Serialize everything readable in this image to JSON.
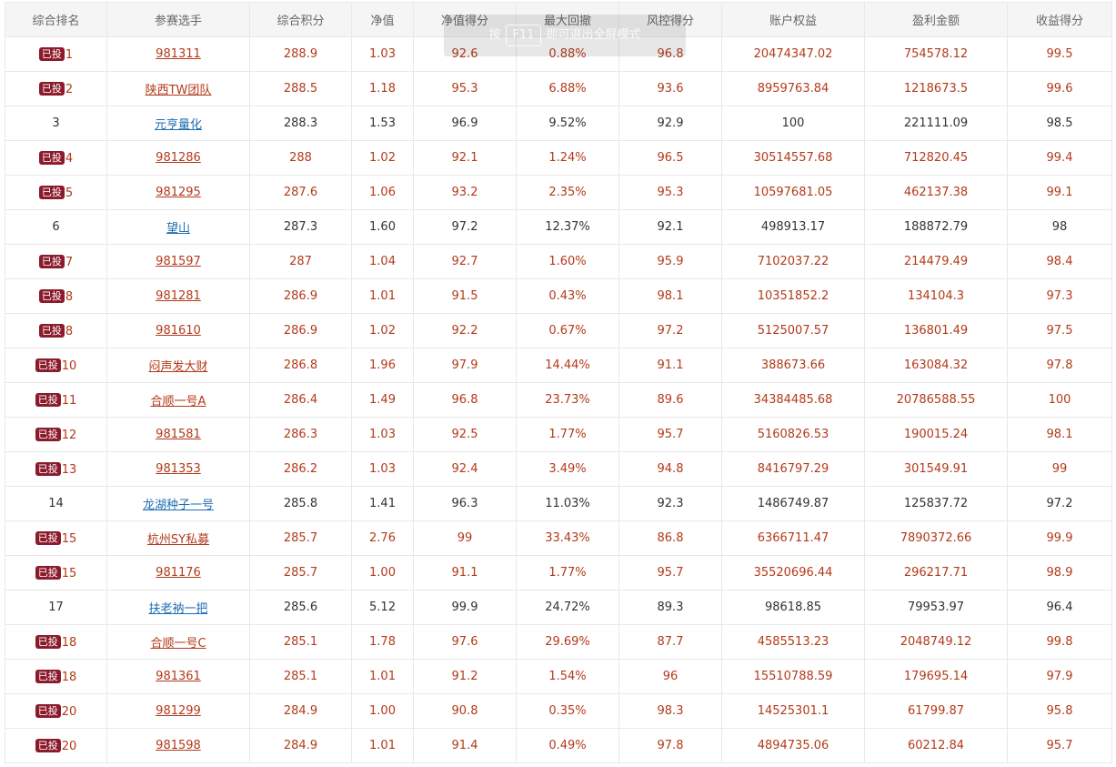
{
  "headers": [
    "综合排名",
    "参赛选手",
    "综合积分",
    "净值",
    "净值得分",
    "最大回撤",
    "风控得分",
    "账户权益",
    "盈利金额",
    "收益得分"
  ],
  "badge_label": "已投",
  "toast": {
    "pre": "按",
    "key": "F11",
    "post": "即可退出全屏模式"
  },
  "rows": [
    {
      "rank": "1",
      "invested": true,
      "name": "981311",
      "score": "288.9",
      "nav": "1.03",
      "nav_score": "92.6",
      "max_dd": "0.88%",
      "risk_score": "96.8",
      "equity": "20474347.02",
      "profit": "754578.12",
      "return_score": "99.5"
    },
    {
      "rank": "2",
      "invested": true,
      "name": "陕西TW团队",
      "score": "288.5",
      "nav": "1.18",
      "nav_score": "95.3",
      "max_dd": "6.88%",
      "risk_score": "93.6",
      "equity": "8959763.84",
      "profit": "1218673.5",
      "return_score": "99.6"
    },
    {
      "rank": "3",
      "invested": false,
      "name": "元亨量化",
      "score": "288.3",
      "nav": "1.53",
      "nav_score": "96.9",
      "max_dd": "9.52%",
      "risk_score": "92.9",
      "equity": "100",
      "profit": "221111.09",
      "return_score": "98.5"
    },
    {
      "rank": "4",
      "invested": true,
      "name": "981286",
      "score": "288",
      "nav": "1.02",
      "nav_score": "92.1",
      "max_dd": "1.24%",
      "risk_score": "96.5",
      "equity": "30514557.68",
      "profit": "712820.45",
      "return_score": "99.4"
    },
    {
      "rank": "5",
      "invested": true,
      "name": "981295",
      "score": "287.6",
      "nav": "1.06",
      "nav_score": "93.2",
      "max_dd": "2.35%",
      "risk_score": "95.3",
      "equity": "10597681.05",
      "profit": "462137.38",
      "return_score": "99.1"
    },
    {
      "rank": "6",
      "invested": false,
      "name": "望山",
      "score": "287.3",
      "nav": "1.60",
      "nav_score": "97.2",
      "max_dd": "12.37%",
      "risk_score": "92.1",
      "equity": "498913.17",
      "profit": "188872.79",
      "return_score": "98"
    },
    {
      "rank": "7",
      "invested": true,
      "name": "981597",
      "score": "287",
      "nav": "1.04",
      "nav_score": "92.7",
      "max_dd": "1.60%",
      "risk_score": "95.9",
      "equity": "7102037.22",
      "profit": "214479.49",
      "return_score": "98.4"
    },
    {
      "rank": "8",
      "invested": true,
      "name": "981281",
      "score": "286.9",
      "nav": "1.01",
      "nav_score": "91.5",
      "max_dd": "0.43%",
      "risk_score": "98.1",
      "equity": "10351852.2",
      "profit": "134104.3",
      "return_score": "97.3"
    },
    {
      "rank": "8",
      "invested": true,
      "name": "981610",
      "score": "286.9",
      "nav": "1.02",
      "nav_score": "92.2",
      "max_dd": "0.67%",
      "risk_score": "97.2",
      "equity": "5125007.57",
      "profit": "136801.49",
      "return_score": "97.5"
    },
    {
      "rank": "10",
      "invested": true,
      "name": "闷声发大财",
      "score": "286.8",
      "nav": "1.96",
      "nav_score": "97.9",
      "max_dd": "14.44%",
      "risk_score": "91.1",
      "equity": "388673.66",
      "profit": "163084.32",
      "return_score": "97.8"
    },
    {
      "rank": "11",
      "invested": true,
      "name": "合顺一号A",
      "score": "286.4",
      "nav": "1.49",
      "nav_score": "96.8",
      "max_dd": "23.73%",
      "risk_score": "89.6",
      "equity": "34384485.68",
      "profit": "20786588.55",
      "return_score": "100"
    },
    {
      "rank": "12",
      "invested": true,
      "name": "981581",
      "score": "286.3",
      "nav": "1.03",
      "nav_score": "92.5",
      "max_dd": "1.77%",
      "risk_score": "95.7",
      "equity": "5160826.53",
      "profit": "190015.24",
      "return_score": "98.1"
    },
    {
      "rank": "13",
      "invested": true,
      "name": "981353",
      "score": "286.2",
      "nav": "1.03",
      "nav_score": "92.4",
      "max_dd": "3.49%",
      "risk_score": "94.8",
      "equity": "8416797.29",
      "profit": "301549.91",
      "return_score": "99"
    },
    {
      "rank": "14",
      "invested": false,
      "name": "龙湖种子一号",
      "score": "285.8",
      "nav": "1.41",
      "nav_score": "96.3",
      "max_dd": "11.03%",
      "risk_score": "92.3",
      "equity": "1486749.87",
      "profit": "125837.72",
      "return_score": "97.2"
    },
    {
      "rank": "15",
      "invested": true,
      "name": "杭州SY私募",
      "score": "285.7",
      "nav": "2.76",
      "nav_score": "99",
      "max_dd": "33.43%",
      "risk_score": "86.8",
      "equity": "6366711.47",
      "profit": "7890372.66",
      "return_score": "99.9"
    },
    {
      "rank": "15",
      "invested": true,
      "name": "981176",
      "score": "285.7",
      "nav": "1.00",
      "nav_score": "91.1",
      "max_dd": "1.77%",
      "risk_score": "95.7",
      "equity": "35520696.44",
      "profit": "296217.71",
      "return_score": "98.9"
    },
    {
      "rank": "17",
      "invested": false,
      "name": "扶老衲一把",
      "score": "285.6",
      "nav": "5.12",
      "nav_score": "99.9",
      "max_dd": "24.72%",
      "risk_score": "89.3",
      "equity": "98618.85",
      "profit": "79953.97",
      "return_score": "96.4"
    },
    {
      "rank": "18",
      "invested": true,
      "name": "合顺一号C",
      "score": "285.1",
      "nav": "1.78",
      "nav_score": "97.6",
      "max_dd": "29.69%",
      "risk_score": "87.7",
      "equity": "4585513.23",
      "profit": "2048749.12",
      "return_score": "99.8"
    },
    {
      "rank": "18",
      "invested": true,
      "name": "981361",
      "score": "285.1",
      "nav": "1.01",
      "nav_score": "91.2",
      "max_dd": "1.54%",
      "risk_score": "96",
      "equity": "15510788.59",
      "profit": "179695.14",
      "return_score": "97.9"
    },
    {
      "rank": "20",
      "invested": true,
      "name": "981299",
      "score": "284.9",
      "nav": "1.00",
      "nav_score": "90.8",
      "max_dd": "0.35%",
      "risk_score": "98.3",
      "equity": "14525301.1",
      "profit": "61799.87",
      "return_score": "95.8"
    },
    {
      "rank": "20",
      "invested": true,
      "name": "981598",
      "score": "284.9",
      "nav": "1.01",
      "nav_score": "91.4",
      "max_dd": "0.49%",
      "risk_score": "97.8",
      "equity": "4894735.06",
      "profit": "60212.84",
      "return_score": "95.7"
    }
  ]
}
